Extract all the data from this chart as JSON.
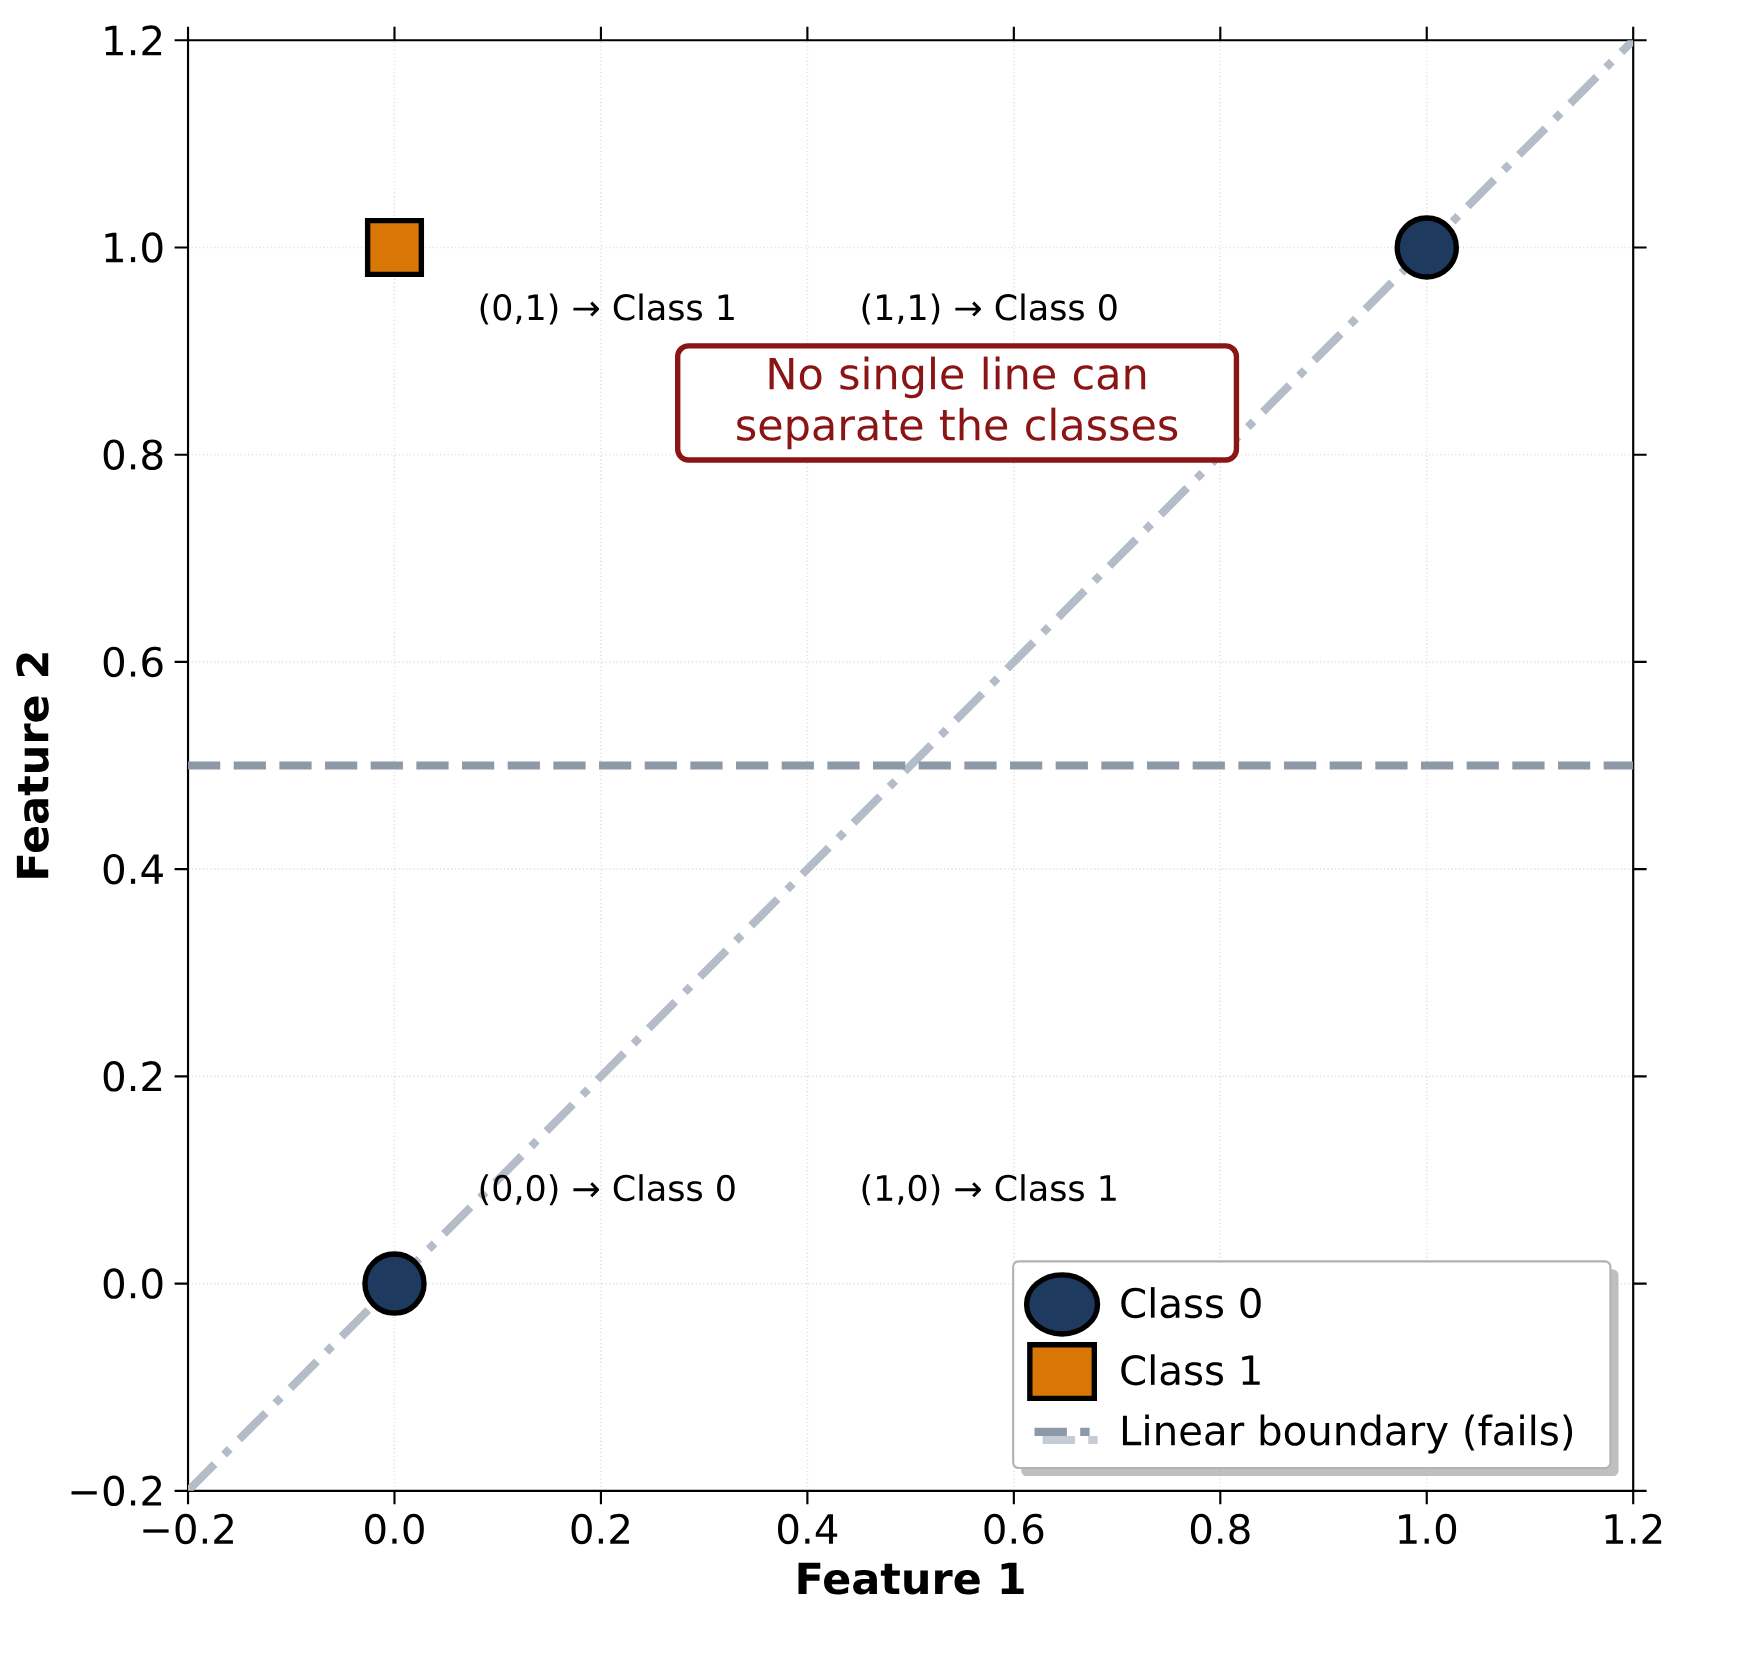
{
  "chart_data": {
    "type": "scatter",
    "xlabel": "Feature 1",
    "ylabel": "Feature 2",
    "xlim": [
      -0.2,
      1.2
    ],
    "ylim": [
      -0.2,
      1.2
    ],
    "xticks": [
      {
        "value": -0.2,
        "label": "−0.2"
      },
      {
        "value": 0.0,
        "label": "0.0"
      },
      {
        "value": 0.2,
        "label": "0.2"
      },
      {
        "value": 0.4,
        "label": "0.4"
      },
      {
        "value": 0.6,
        "label": "0.6"
      },
      {
        "value": 0.8,
        "label": "0.8"
      },
      {
        "value": 1.0,
        "label": "1.0"
      },
      {
        "value": 1.2,
        "label": "1.2"
      }
    ],
    "yticks": [
      {
        "value": -0.2,
        "label": "−0.2"
      },
      {
        "value": 0.0,
        "label": "0.0"
      },
      {
        "value": 0.2,
        "label": "0.2"
      },
      {
        "value": 0.4,
        "label": "0.4"
      },
      {
        "value": 0.6,
        "label": "0.6"
      },
      {
        "value": 0.8,
        "label": "0.8"
      },
      {
        "value": 1.0,
        "label": "1.0"
      },
      {
        "value": 1.2,
        "label": "1.2"
      }
    ],
    "grid": true,
    "legend": "bottom right",
    "series": [
      {
        "name": "Class 0",
        "marker": "circle",
        "color": "#1f3a5f",
        "x": [
          0,
          1
        ],
        "values": [
          0,
          1
        ]
      },
      {
        "name": "Class 1",
        "marker": "square",
        "color": "#d97706",
        "x": [
          0
        ],
        "values": [
          1
        ]
      },
      {
        "type": "line",
        "line_style": "dashdot",
        "color": "#b4bcc8",
        "x": [
          -0.2,
          1.2
        ],
        "values": [
          -0.2,
          1.2
        ]
      }
    ],
    "ref_lines": [
      {
        "axis": "y",
        "value": 0.5,
        "label": "Linear boundary (fails)",
        "color": "#8e99a8",
        "line_style": "dashed"
      }
    ],
    "annotations": [
      "(0,1) → Class 1",
      "(1,1) → Class 0",
      "(0,0) → Class 0",
      "(1,0) → Class 1",
      "No single line can separate the classes"
    ]
  }
}
